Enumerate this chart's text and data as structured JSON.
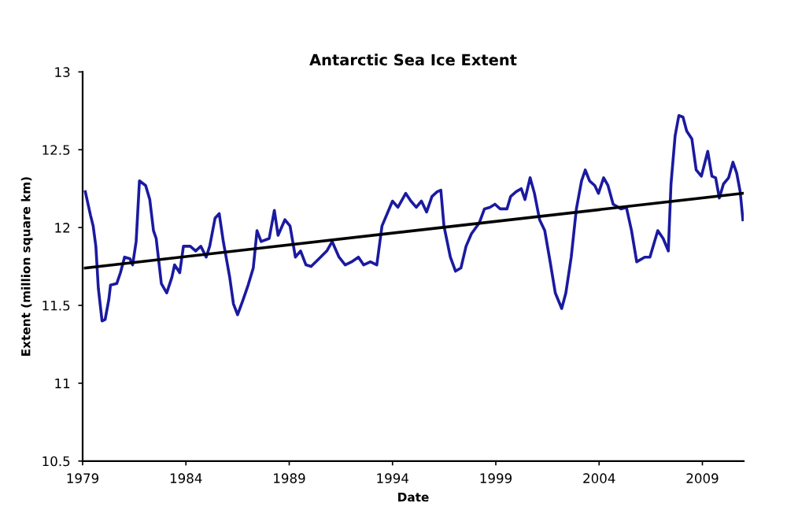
{
  "chart_data": {
    "type": "line",
    "title": "Antarctic Sea Ice Extent",
    "xlabel": "Date",
    "ylabel": "Extent (million square km)",
    "xlim": [
      1979,
      2011
    ],
    "xticks": [
      1979,
      1984,
      1989,
      1994,
      1999,
      2004,
      2009
    ],
    "ylim": [
      10.5,
      13
    ],
    "yticks": [
      10.5,
      11,
      11.5,
      12,
      12.5,
      13
    ],
    "grid": false,
    "marker": "none",
    "line_style": "solid",
    "series": [
      {
        "color": "#1a1aa0",
        "x": [
          1979.13,
          1979.38,
          1979.51,
          1979.64,
          1979.76,
          1979.94,
          1980.09,
          1980.27,
          1980.35,
          1980.65,
          1980.83,
          1981.03,
          1981.29,
          1981.42,
          1981.59,
          1981.75,
          1982.05,
          1982.25,
          1982.43,
          1982.56,
          1982.81,
          1983.07,
          1983.32,
          1983.45,
          1983.7,
          1983.88,
          1984.21,
          1984.47,
          1984.72,
          1984.98,
          1985.15,
          1985.41,
          1985.61,
          1985.81,
          1986.12,
          1986.3,
          1986.5,
          1986.75,
          1987.01,
          1987.26,
          1987.44,
          1987.64,
          1988.03,
          1988.28,
          1988.46,
          1988.79,
          1989.04,
          1989.3,
          1989.55,
          1989.81,
          1990.06,
          1990.44,
          1990.82,
          1991.08,
          1991.41,
          1991.71,
          1992.02,
          1992.35,
          1992.6,
          1992.93,
          1993.24,
          1993.49,
          1994.0,
          1994.26,
          1994.64,
          1994.89,
          1995.15,
          1995.4,
          1995.65,
          1995.91,
          1996.16,
          1996.34,
          1996.49,
          1996.8,
          1997.05,
          1997.31,
          1997.56,
          1997.82,
          1998.2,
          1998.45,
          1998.71,
          1998.96,
          1999.21,
          1999.54,
          1999.72,
          1999.98,
          2000.23,
          2000.41,
          2000.66,
          2000.87,
          2001.12,
          2001.37,
          2001.63,
          2001.88,
          2002.19,
          2002.39,
          2002.65,
          2002.9,
          2003.15,
          2003.33,
          2003.54,
          2003.79,
          2003.97,
          2004.22,
          2004.43,
          2004.68,
          2005.06,
          2005.32,
          2005.57,
          2005.82,
          2006.21,
          2006.46,
          2006.84,
          2007.1,
          2007.35,
          2007.48,
          2007.68,
          2007.86,
          2008.06,
          2008.24,
          2008.49,
          2008.7,
          2008.95,
          2009.26,
          2009.46,
          2009.64,
          2009.82,
          2010.02,
          2010.27,
          2010.48,
          2010.66,
          2010.83,
          2010.96
        ],
        "values": [
          12.23,
          12.08,
          12.01,
          11.88,
          11.61,
          11.4,
          11.41,
          11.54,
          11.63,
          11.64,
          11.71,
          11.81,
          11.8,
          11.76,
          11.91,
          12.3,
          12.27,
          12.18,
          11.98,
          11.93,
          11.64,
          11.58,
          11.68,
          11.76,
          11.71,
          11.88,
          11.88,
          11.85,
          11.88,
          11.81,
          11.88,
          12.06,
          12.09,
          11.91,
          11.68,
          11.51,
          11.44,
          11.53,
          11.63,
          11.74,
          11.98,
          11.91,
          11.93,
          12.11,
          11.95,
          12.05,
          12.01,
          11.81,
          11.85,
          11.76,
          11.75,
          11.8,
          11.85,
          11.91,
          11.81,
          11.76,
          11.78,
          11.81,
          11.76,
          11.78,
          11.76,
          12.01,
          12.17,
          12.13,
          12.22,
          12.17,
          12.13,
          12.17,
          12.1,
          12.2,
          12.23,
          12.24,
          12.01,
          11.81,
          11.72,
          11.74,
          11.88,
          11.96,
          12.03,
          12.12,
          12.13,
          12.15,
          12.12,
          12.12,
          12.2,
          12.23,
          12.25,
          12.18,
          12.32,
          12.22,
          12.05,
          11.98,
          11.78,
          11.58,
          11.48,
          11.58,
          11.81,
          12.12,
          12.3,
          12.37,
          12.3,
          12.27,
          12.22,
          12.32,
          12.27,
          12.15,
          12.12,
          12.13,
          11.98,
          11.78,
          11.81,
          11.81,
          11.98,
          11.93,
          11.85,
          12.28,
          12.59,
          12.72,
          12.71,
          12.62,
          12.57,
          12.37,
          12.33,
          12.49,
          12.33,
          12.32,
          12.19,
          12.28,
          12.32,
          12.42,
          12.35,
          12.23,
          12.05
        ]
      },
      {
        "color": "#000000",
        "x": [
          1979.13,
          2010.96
        ],
        "values": [
          11.74,
          12.22
        ]
      }
    ]
  }
}
